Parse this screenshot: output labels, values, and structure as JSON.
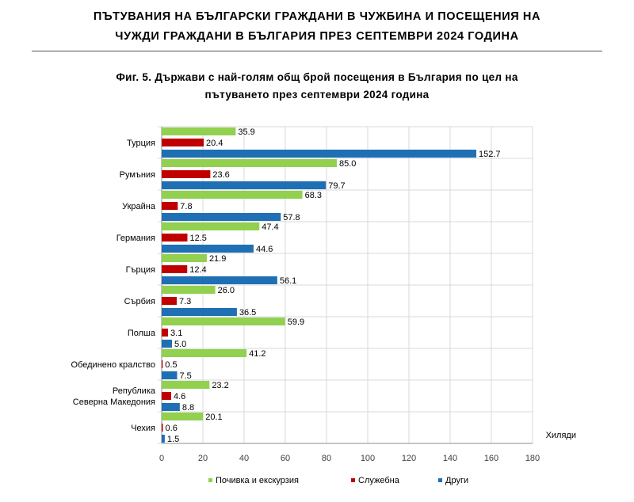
{
  "document": {
    "title_line1": "ПЪТУВАНИЯ НА БЪЛГАРСКИ ГРАЖДАНИ В ЧУЖБИНА И ПОСЕЩЕНИЯ НА",
    "title_line2": "ЧУЖДИ ГРАЖДАНИ В БЪЛГАРИЯ ПРЕЗ СЕПТЕМВРИ 2024 ГОДИНА"
  },
  "chart_data": {
    "type": "bar",
    "orientation": "horizontal",
    "title_line1": "Фиг. 5. Държави с най-голям общ брой посещения в България по цел на",
    "title_line2": "пътуването през септември 2024 година",
    "unit_label": "Хиляди",
    "categories": [
      [
        "Турция"
      ],
      [
        "Румъния"
      ],
      [
        "Украйна"
      ],
      [
        "Германия"
      ],
      [
        "Гърция"
      ],
      [
        "Сърбия"
      ],
      [
        "Полша"
      ],
      [
        "Обединено кралство"
      ],
      [
        "Република",
        "Северна Македония"
      ],
      [
        "Чехия"
      ]
    ],
    "series": [
      {
        "name": "Почивка и екскурзия",
        "color": "#92d050",
        "values": [
          35.9,
          85.0,
          68.3,
          47.4,
          21.9,
          26.0,
          59.9,
          41.2,
          23.2,
          20.1
        ]
      },
      {
        "name": "Служебна",
        "color": "#c00000",
        "values": [
          20.4,
          23.6,
          7.8,
          12.5,
          12.4,
          7.3,
          3.1,
          0.5,
          4.6,
          0.6
        ]
      },
      {
        "name": "Други",
        "color": "#1f6fb4",
        "values": [
          152.7,
          79.7,
          57.8,
          44.6,
          56.1,
          36.5,
          5.0,
          7.5,
          8.8,
          1.5
        ]
      }
    ],
    "xlim": [
      0,
      180
    ],
    "xticks": [
      0,
      20,
      40,
      60,
      80,
      100,
      120,
      140,
      160,
      180
    ],
    "grid": true,
    "legend_position": "bottom"
  }
}
